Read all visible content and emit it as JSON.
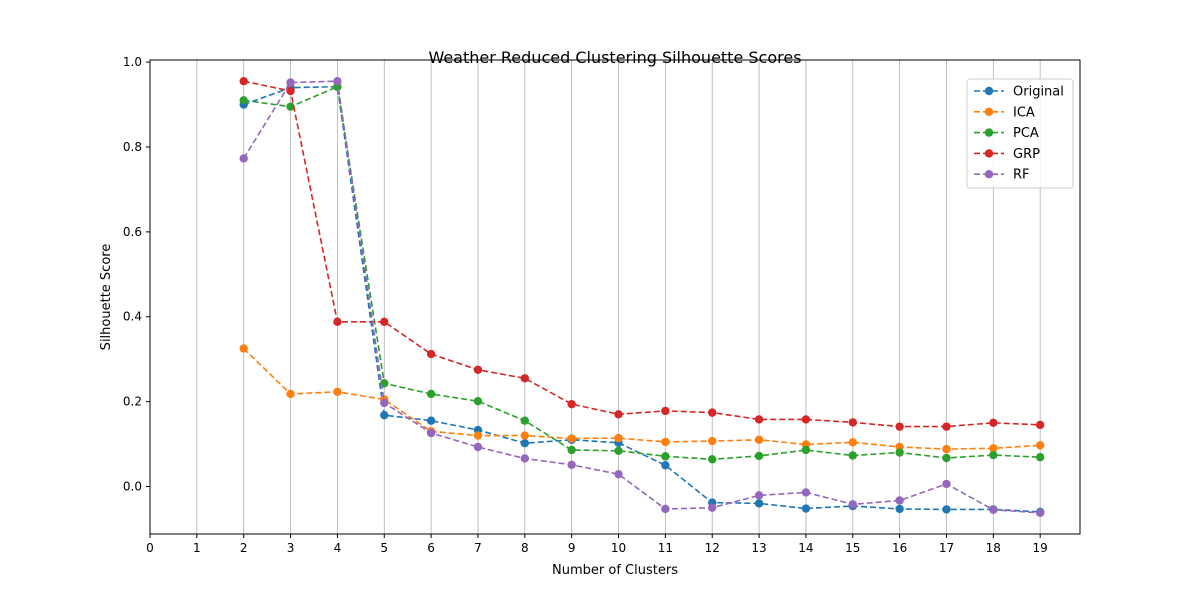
{
  "chart_data": {
    "type": "line",
    "title": "Weather Reduced Clustering Silhouette Scores",
    "xlabel": "Number of Clusters",
    "ylabel": "Silhouette Score",
    "xlim": [
      0,
      19.85
    ],
    "ylim": [
      -0.112,
      1.005
    ],
    "xticks": [
      0,
      1,
      2,
      3,
      4,
      5,
      6,
      7,
      8,
      9,
      10,
      11,
      12,
      13,
      14,
      15,
      16,
      17,
      18,
      19
    ],
    "xtick_labels": [
      "0",
      "1",
      "2",
      "3",
      "4",
      "5",
      "6",
      "7",
      "8",
      "9",
      "10",
      "11",
      "12",
      "13",
      "14",
      "15",
      "16",
      "17",
      "18",
      "19"
    ],
    "yticks": [
      0.0,
      0.2,
      0.4,
      0.6,
      0.8,
      1.0
    ],
    "ytick_labels": [
      "0.0",
      "0.2",
      "0.4",
      "0.6",
      "0.8",
      "1.0"
    ],
    "grid": "vertical",
    "legend_position": "top-right",
    "x": [
      2,
      3,
      4,
      5,
      6,
      7,
      8,
      9,
      10,
      11,
      12,
      13,
      14,
      15,
      16,
      17,
      18,
      19
    ],
    "series": [
      {
        "name": "Original",
        "color": "#1f77b4",
        "values": [
          0.9,
          0.94,
          0.942,
          0.168,
          0.155,
          0.133,
          0.102,
          0.11,
          0.103,
          0.05,
          -0.038,
          -0.04,
          -0.052,
          -0.046,
          -0.053,
          -0.054,
          -0.054,
          -0.06
        ]
      },
      {
        "name": "ICA",
        "color": "#ff7f0e",
        "values": [
          0.325,
          0.218,
          0.223,
          0.205,
          0.13,
          0.12,
          0.12,
          0.113,
          0.114,
          0.105,
          0.107,
          0.11,
          0.099,
          0.104,
          0.093,
          0.088,
          0.09,
          0.097
        ]
      },
      {
        "name": "PCA",
        "color": "#2ca02c",
        "values": [
          0.91,
          0.895,
          0.942,
          0.243,
          0.218,
          0.201,
          0.155,
          0.086,
          0.084,
          0.071,
          0.064,
          0.072,
          0.086,
          0.073,
          0.08,
          0.067,
          0.074,
          0.069
        ]
      },
      {
        "name": "GRP",
        "color": "#d62728",
        "values": [
          0.955,
          0.932,
          0.388,
          0.388,
          0.312,
          0.275,
          0.255,
          0.194,
          0.17,
          0.178,
          0.174,
          0.158,
          0.158,
          0.151,
          0.141,
          0.141,
          0.15,
          0.145
        ]
      },
      {
        "name": "RF",
        "color": "#9467bd",
        "values": [
          0.773,
          0.952,
          0.955,
          0.197,
          0.126,
          0.093,
          0.066,
          0.051,
          0.029,
          -0.053,
          -0.05,
          -0.021,
          -0.014,
          -0.042,
          -0.033,
          0.006,
          -0.055,
          -0.062
        ]
      }
    ]
  }
}
